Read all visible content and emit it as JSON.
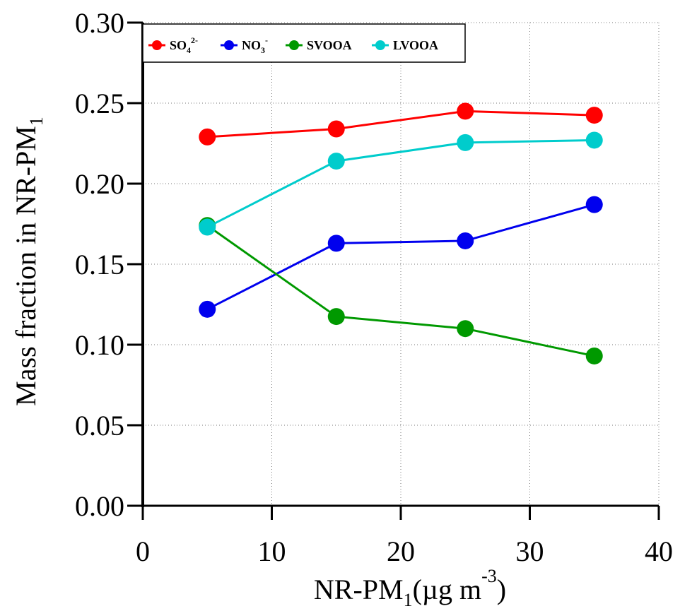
{
  "chart_data": {
    "type": "line",
    "x": [
      5,
      15,
      25,
      35
    ],
    "series": [
      {
        "name": "SO4 2-",
        "name_base": "SO",
        "name_sub": "4",
        "name_sup": "2-",
        "color": "#ff0000",
        "values": [
          0.229,
          0.234,
          0.245,
          0.2425
        ]
      },
      {
        "name": "NO3 -",
        "name_base": "NO",
        "name_sub": "3",
        "name_sup": "-",
        "color": "#0000ee",
        "values": [
          0.122,
          0.163,
          0.1645,
          0.187
        ]
      },
      {
        "name": "SVOOA",
        "name_base": "SVOOA",
        "name_sub": "",
        "name_sup": "",
        "color": "#009900",
        "values": [
          0.174,
          0.1175,
          0.11,
          0.093
        ]
      },
      {
        "name": "LVOOA",
        "name_base": "LVOOA",
        "name_sub": "",
        "name_sup": "",
        "color": "#00cccc",
        "values": [
          0.173,
          0.214,
          0.2255,
          0.227
        ]
      }
    ],
    "xlim": [
      0,
      40
    ],
    "ylim": [
      0,
      0.3
    ],
    "x_ticks": [
      "0",
      "10",
      "20",
      "30",
      "40"
    ],
    "y_ticks": [
      "0.00",
      "0.05",
      "0.10",
      "0.15",
      "0.20",
      "0.25",
      "0.30"
    ],
    "xlabel": {
      "base": "NR-PM",
      "sub": "1",
      "unit": "(µg m",
      "sup": "-3",
      "close": ")"
    },
    "ylabel": {
      "base": "Mass fraction in NR-PM",
      "sub": "1"
    },
    "grid": true,
    "legend_position": "top"
  }
}
